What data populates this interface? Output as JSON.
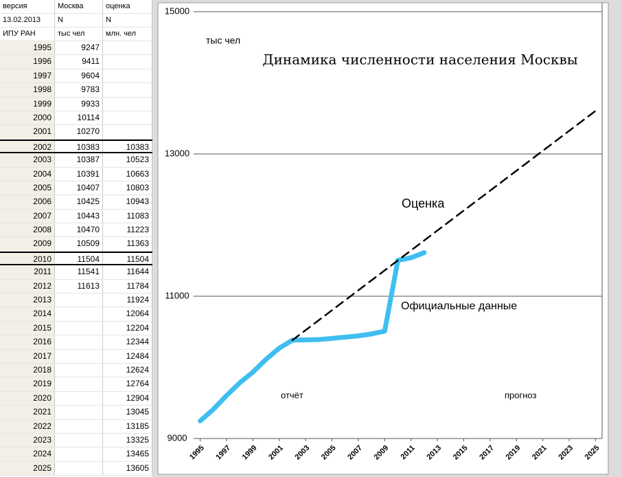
{
  "table": {
    "header": [
      [
        "версия",
        "Москва",
        "оценка"
      ],
      [
        "13.02.2013",
        "N",
        "N"
      ],
      [
        "ИПУ РАН",
        "тыс чел",
        "млн. чел"
      ]
    ],
    "rows": [
      [
        1995,
        9247,
        null
      ],
      [
        1996,
        9411,
        null
      ],
      [
        1997,
        9604,
        null
      ],
      [
        1998,
        9783,
        null
      ],
      [
        1999,
        9933,
        null
      ],
      [
        2000,
        10114,
        null
      ],
      [
        2001,
        10270,
        null
      ],
      [
        2002,
        10383,
        10383
      ],
      [
        2003,
        10387,
        10523
      ],
      [
        2004,
        10391,
        10663
      ],
      [
        2005,
        10407,
        10803
      ],
      [
        2006,
        10425,
        10943
      ],
      [
        2007,
        10443,
        11083
      ],
      [
        2008,
        10470,
        11223
      ],
      [
        2009,
        10509,
        11363
      ],
      [
        2010,
        11504,
        11504
      ],
      [
        2011,
        11541,
        11644
      ],
      [
        2012,
        11613,
        11784
      ],
      [
        2013,
        null,
        11924
      ],
      [
        2014,
        null,
        12064
      ],
      [
        2015,
        null,
        12204
      ],
      [
        2016,
        null,
        12344
      ],
      [
        2017,
        null,
        12484
      ],
      [
        2018,
        null,
        12624
      ],
      [
        2019,
        null,
        12764
      ],
      [
        2020,
        null,
        12904
      ],
      [
        2021,
        null,
        13045
      ],
      [
        2022,
        null,
        13185
      ],
      [
        2023,
        null,
        13325
      ],
      [
        2024,
        null,
        13465
      ],
      [
        2025,
        null,
        13605
      ]
    ]
  },
  "chart_data": {
    "type": "line",
    "title": "Динамика численности населения Москвы",
    "y_unit_label": "тыс чел",
    "annotations": [
      "отчёт",
      "прогноз"
    ],
    "x": [
      1995,
      1996,
      1997,
      1998,
      1999,
      2000,
      2001,
      2002,
      2003,
      2004,
      2005,
      2006,
      2007,
      2008,
      2009,
      2010,
      2011,
      2012,
      2013,
      2014,
      2015,
      2016,
      2017,
      2018,
      2019,
      2020,
      2021,
      2022,
      2023,
      2024,
      2025
    ],
    "series": [
      {
        "name": "Официальные данные",
        "color": "#3fbef0",
        "line_style": "solid",
        "values": [
          9247,
          9411,
          9604,
          9783,
          9933,
          10114,
          10270,
          10383,
          10387,
          10391,
          10407,
          10425,
          10443,
          10470,
          10509,
          11504,
          11541,
          11613,
          null,
          null,
          null,
          null,
          null,
          null,
          null,
          null,
          null,
          null,
          null,
          null,
          null
        ]
      },
      {
        "name": "Оценка",
        "color": "#000000",
        "line_style": "dashed",
        "values": [
          null,
          null,
          null,
          null,
          null,
          null,
          null,
          10383,
          10523,
          10663,
          10803,
          10943,
          11083,
          11223,
          11363,
          11504,
          11644,
          11784,
          11924,
          12064,
          12204,
          12344,
          12484,
          12624,
          12764,
          12904,
          13045,
          13185,
          13325,
          13465,
          13605
        ]
      }
    ],
    "xlim": [
      1994.5,
      2025.5
    ],
    "xticks": [
      1995,
      1997,
      1999,
      2001,
      2003,
      2005,
      2007,
      2009,
      2011,
      2013,
      2015,
      2017,
      2019,
      2021,
      2023,
      2025
    ],
    "ylim": [
      9000,
      15000
    ],
    "yticks": [
      9000,
      11000,
      13000,
      15000
    ],
    "grid": true
  }
}
